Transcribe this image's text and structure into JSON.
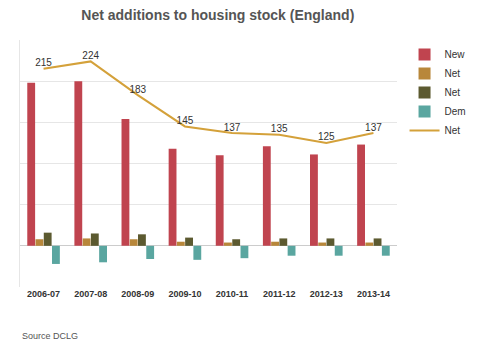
{
  "chart_data": {
    "type": "bar",
    "title": "Net additions to housing stock (England)",
    "source": "Source DCLG",
    "categories": [
      "2006-07",
      "2007-08",
      "2008-09",
      "2009-10",
      "2010-11",
      "2011-12",
      "2012-13",
      "2013-14"
    ],
    "series": [
      {
        "name": "New",
        "type": "bar",
        "color": "#c0444f",
        "values": [
          198,
          200,
          154,
          118,
          110,
          121,
          111,
          123
        ]
      },
      {
        "name": "Net",
        "type": "bar",
        "color": "#b8873a",
        "values": [
          8,
          9,
          8,
          5,
          4,
          5,
          4,
          4
        ]
      },
      {
        "name": "Net",
        "type": "bar",
        "color": "#5c5a30",
        "values": [
          16,
          15,
          14,
          10,
          8,
          9,
          9,
          9
        ]
      },
      {
        "name": "Dem",
        "type": "bar",
        "color": "#5aa6a0",
        "values": [
          -22,
          -20,
          -16,
          -17,
          -15,
          -12,
          -12,
          -12
        ]
      },
      {
        "name": "Net",
        "type": "line",
        "color": "#d4a13a",
        "data_labels": true,
        "values": [
          215,
          224,
          183,
          145,
          137,
          135,
          125,
          137
        ]
      }
    ],
    "ylim": [
      -50,
      250
    ],
    "yticks": [
      -50,
      0,
      50,
      100,
      150,
      200,
      250
    ],
    "grid": true,
    "tick_labels": "x",
    "legend": "top right"
  }
}
